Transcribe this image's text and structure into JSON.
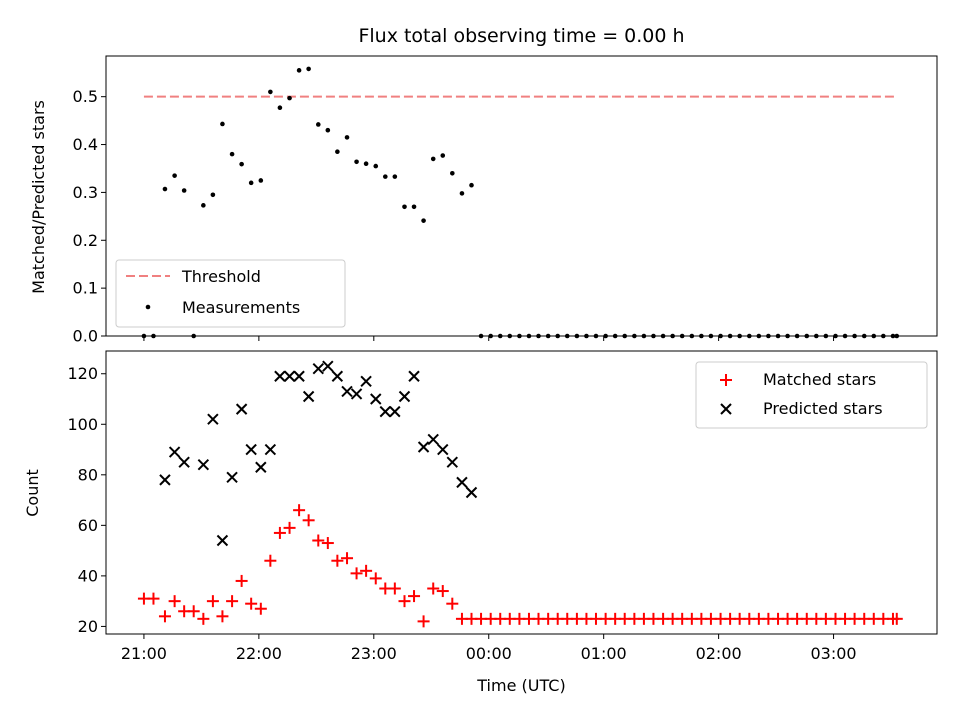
{
  "chart_data": [
    {
      "type": "scatter",
      "title": "Flux total observing time = 0.00 h",
      "ylabel": "Matched/Predicted stars",
      "xlabel": "",
      "xlim": [
        -0.33,
        6.9
      ],
      "ylim": [
        0,
        0.585
      ],
      "yticks": [
        0,
        0.1,
        0.2,
        0.3,
        0.4,
        0.5
      ],
      "ytick_labels": [
        "0.0",
        "0.1",
        "0.2",
        "0.3",
        "0.4",
        "0.5"
      ],
      "xticks": [
        0,
        1,
        2,
        3,
        4,
        5,
        6
      ],
      "legend": {
        "position": "lower-left",
        "entries": [
          "Threshold",
          "Measurements"
        ]
      },
      "threshold": {
        "name": "Threshold",
        "y": 0.5,
        "x": [
          0.0,
          6.55
        ],
        "color": "#f08080"
      },
      "measurements": {
        "name": "Measurements",
        "color": "#000000",
        "x": [
          0.0,
          0.083,
          0.183,
          0.267,
          0.35,
          0.433,
          0.517,
          0.6,
          0.683,
          0.767,
          0.85,
          0.933,
          1.017,
          1.1,
          1.183,
          1.267,
          1.35,
          1.433,
          1.517,
          1.6,
          1.683,
          1.767,
          1.85,
          1.933,
          2.017,
          2.1,
          2.183,
          2.267,
          2.35,
          2.433,
          2.517,
          2.6,
          2.683,
          2.767,
          2.85,
          2.933,
          3.017,
          3.1,
          3.183,
          3.267,
          3.35,
          3.433,
          3.517,
          3.6,
          3.683,
          3.767,
          3.85,
          3.933,
          4.017,
          4.1,
          4.183,
          4.267,
          4.35,
          4.433,
          4.517,
          4.6,
          4.683,
          4.767,
          4.85,
          4.933,
          5.017,
          5.1,
          5.183,
          5.267,
          5.35,
          5.433,
          5.517,
          5.6,
          5.683,
          5.767,
          5.85,
          5.933,
          6.017,
          6.1,
          6.183,
          6.267,
          6.35,
          6.433,
          6.517,
          6.55
        ],
        "y": [
          0.0,
          0.0,
          0.307,
          0.335,
          0.304,
          0.0,
          0.273,
          0.295,
          0.443,
          0.38,
          0.359,
          0.32,
          0.325,
          0.51,
          0.477,
          0.497,
          0.555,
          0.558,
          0.442,
          0.43,
          0.385,
          0.415,
          0.364,
          0.36,
          0.355,
          0.333,
          0.333,
          0.27,
          0.27,
          0.241,
          0.37,
          0.377,
          0.34,
          0.298,
          0.315,
          0.0,
          0.0,
          0.0,
          0.0,
          0.0,
          0.0,
          0.0,
          0.0,
          0.0,
          0.0,
          0.0,
          0.0,
          0.0,
          0.0,
          0.0,
          0.0,
          0.0,
          0.0,
          0.0,
          0.0,
          0.0,
          0.0,
          0.0,
          0.0,
          0.0,
          0.0,
          0.0,
          0.0,
          0.0,
          0.0,
          0.0,
          0.0,
          0.0,
          0.0,
          0.0,
          0.0,
          0.0,
          0.0,
          0.0,
          0.0,
          0.0,
          0.0,
          0.0,
          0.0,
          0.0
        ]
      }
    },
    {
      "type": "scatter",
      "title": "",
      "ylabel": "Count",
      "xlabel": "Time (UTC)",
      "xlim": [
        -0.33,
        6.9
      ],
      "ylim": [
        17,
        129
      ],
      "yticks": [
        20,
        40,
        60,
        80,
        100,
        120
      ],
      "ytick_labels": [
        "20",
        "40",
        "60",
        "80",
        "100",
        "120"
      ],
      "xticks": [
        0,
        1,
        2,
        3,
        4,
        5,
        6
      ],
      "xtick_labels": [
        "21:00",
        "22:00",
        "23:00",
        "00:00",
        "01:00",
        "02:00",
        "03:00"
      ],
      "legend": {
        "position": "top-right",
        "entries": [
          "Matched stars",
          "Predicted stars"
        ]
      },
      "series": [
        {
          "name": "Matched stars",
          "marker": "plus",
          "color": "#ff0000",
          "x": [
            0.0,
            0.083,
            0.183,
            0.267,
            0.35,
            0.433,
            0.517,
            0.6,
            0.683,
            0.767,
            0.85,
            0.933,
            1.017,
            1.1,
            1.183,
            1.267,
            1.35,
            1.433,
            1.517,
            1.6,
            1.683,
            1.767,
            1.85,
            1.933,
            2.017,
            2.1,
            2.183,
            2.267,
            2.35,
            2.433,
            2.517,
            2.6,
            2.683,
            2.767,
            2.85,
            2.933,
            3.017,
            3.1,
            3.183,
            3.267,
            3.35,
            3.433,
            3.517,
            3.6,
            3.683,
            3.767,
            3.85,
            3.933,
            4.017,
            4.1,
            4.183,
            4.267,
            4.35,
            4.433,
            4.517,
            4.6,
            4.683,
            4.767,
            4.85,
            4.933,
            5.017,
            5.1,
            5.183,
            5.267,
            5.35,
            5.433,
            5.517,
            5.6,
            5.683,
            5.767,
            5.85,
            5.933,
            6.017,
            6.1,
            6.183,
            6.267,
            6.35,
            6.433,
            6.517,
            6.55
          ],
          "y": [
            31,
            31,
            24,
            30,
            26,
            26,
            23,
            30,
            24,
            30,
            38,
            29,
            27,
            46,
            57,
            59,
            66,
            62,
            54,
            53,
            46,
            47,
            41,
            42,
            39,
            35,
            35,
            30,
            32,
            22,
            35,
            34,
            29,
            23,
            23,
            23,
            23,
            23,
            23,
            23,
            23,
            23,
            23,
            23,
            23,
            23,
            23,
            23,
            23,
            23,
            23,
            23,
            23,
            23,
            23,
            23,
            23,
            23,
            23,
            23,
            23,
            23,
            23,
            23,
            23,
            23,
            23,
            23,
            23,
            23,
            23,
            23,
            23,
            23,
            23,
            23,
            23,
            23,
            23,
            23
          ]
        },
        {
          "name": "Predicted stars",
          "marker": "x",
          "color": "#000000",
          "x": [
            0.183,
            0.267,
            0.35,
            0.517,
            0.6,
            0.683,
            0.767,
            0.85,
            0.933,
            1.017,
            1.1,
            1.183,
            1.267,
            1.35,
            1.433,
            1.517,
            1.6,
            1.683,
            1.767,
            1.85,
            1.933,
            2.017,
            2.1,
            2.183,
            2.267,
            2.35,
            2.433,
            2.517,
            2.6,
            2.683,
            2.767,
            2.85
          ],
          "y": [
            78,
            89,
            85,
            84,
            102,
            54,
            79,
            106,
            90,
            83,
            90,
            119,
            119,
            119,
            111,
            122,
            123,
            119,
            113,
            112,
            117,
            110,
            105,
            105,
            111,
            119,
            91,
            94,
            90,
            85,
            77,
            73
          ]
        }
      ]
    }
  ]
}
